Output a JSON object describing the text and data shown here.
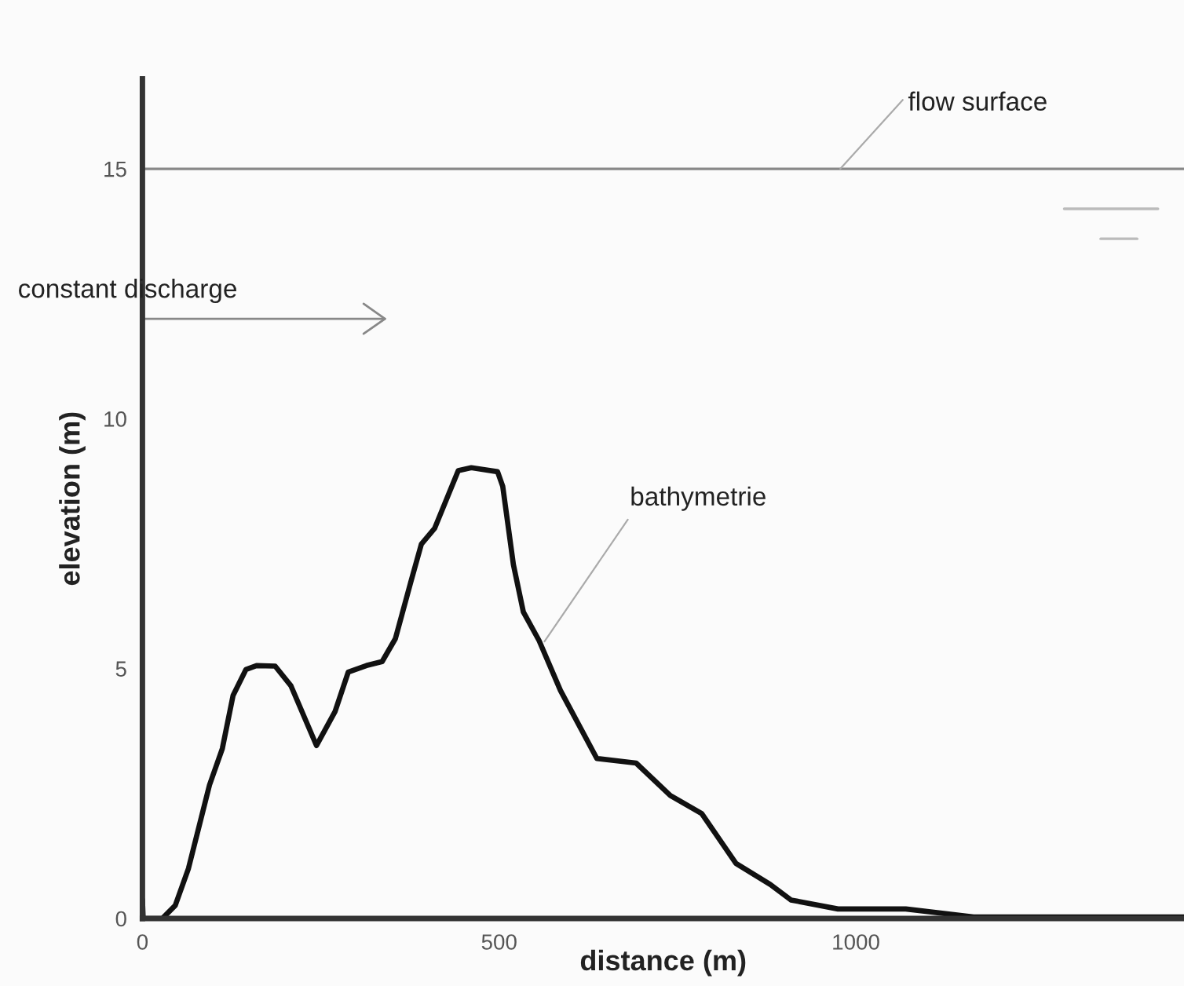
{
  "chart_data": {
    "type": "line",
    "xlabel": "distance (m)",
    "ylabel": "elevation (m)",
    "x": [
      0,
      1,
      28,
      46,
      64.5,
      94,
      112,
      127,
      145,
      160,
      186,
      208,
      244,
      270,
      288.5,
      314,
      336,
      354.6,
      376.7,
      391,
      409.7,
      442.7,
      461,
      497.8,
      505,
      520,
      534,
      556,
      586,
      637,
      692,
      740,
      784,
      832,
      880,
      909,
      975,
      1070,
      1165,
      1460
    ],
    "series": [
      {
        "name": "bathymetrie",
        "color": "#111111",
        "values": [
          0.37,
          0,
          0,
          0.26,
          1.0,
          2.67,
          3.4,
          4.46,
          4.98,
          5.06,
          5.05,
          4.66,
          3.46,
          4.14,
          4.93,
          5.06,
          5.14,
          5.6,
          6.76,
          7.49,
          7.81,
          8.96,
          9.02,
          8.94,
          8.65,
          7.08,
          6.13,
          5.56,
          4.56,
          3.2,
          3.11,
          2.46,
          2.1,
          1.1,
          0.68,
          0.37,
          0.19,
          0.19,
          0.03,
          0.03
        ]
      }
    ],
    "xlim": [
      0,
      1460
    ],
    "ylim": [
      0,
      16.8
    ],
    "xticks": [
      0,
      500,
      1000
    ],
    "yticks": [
      0,
      5,
      10,
      15
    ],
    "ref_lines": [
      {
        "axis": "y",
        "value": 15,
        "label": "flow surface",
        "color": "#888888"
      }
    ],
    "annotations": [
      "constant discharge"
    ],
    "line_style": "solid",
    "marker": "none",
    "grid": false
  }
}
